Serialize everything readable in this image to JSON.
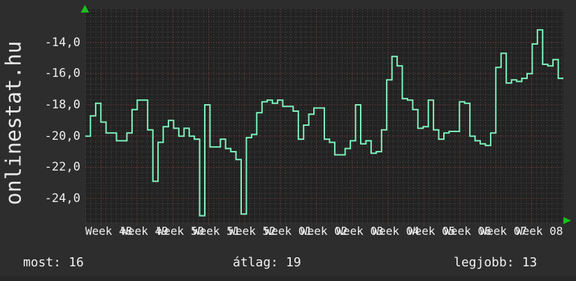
{
  "branding": {
    "site": "onlinestat.hu"
  },
  "footer": {
    "stats": [
      {
        "label": "most:",
        "value": "16"
      },
      {
        "label": "átlag:",
        "value": "19"
      },
      {
        "label": "legjobb:",
        "value": "13"
      }
    ]
  },
  "icons": {
    "axis_arrow_up": "up-triangle",
    "axis_arrow_right": "right-triangle"
  },
  "colors": {
    "background": "#2d2d2d",
    "plot_background": "#222222",
    "grid_minor": "#505050",
    "grid_major": "#993f3f",
    "series": "#7df4bd",
    "axis_marker_green": "#1ac119",
    "text": "#f0f0f0"
  },
  "chart_data": {
    "type": "line",
    "step": true,
    "title": "",
    "xlabel": "",
    "ylabel": "",
    "legend": null,
    "grid": true,
    "ylim": [
      -25.6,
      -11.9
    ],
    "y_ticks": [
      -14,
      -16,
      -18,
      -20,
      -22,
      -24
    ],
    "y_tick_labels": [
      "-14,0",
      "-16,0",
      "-18,0",
      "-20,0",
      "-22,0",
      "-24,0"
    ],
    "x_tick_labels": [
      "Week 48",
      "Week 49",
      "Week 50",
      "Week 51",
      "Week 52",
      "Week 01",
      "Week 02",
      "Week 03",
      "Week 04",
      "Week 05",
      "Week 06",
      "Week 07",
      "Week 08"
    ],
    "x_unit": "day",
    "values": [
      -20.0,
      -18.7,
      -17.9,
      -19.1,
      -19.8,
      -19.8,
      -20.3,
      -20.3,
      -19.8,
      -18.3,
      -17.7,
      -17.7,
      -19.6,
      -22.9,
      -20.4,
      -19.4,
      -19.0,
      -19.5,
      -20.0,
      -19.5,
      -20.0,
      -20.2,
      -25.1,
      -18.0,
      -20.7,
      -20.7,
      -20.2,
      -20.8,
      -21.0,
      -21.5,
      -25.0,
      -20.1,
      -19.9,
      -18.5,
      -17.8,
      -17.7,
      -17.9,
      -17.7,
      -18.1,
      -18.1,
      -18.4,
      -20.2,
      -19.3,
      -18.6,
      -18.2,
      -18.2,
      -20.2,
      -20.4,
      -21.2,
      -21.2,
      -20.8,
      -20.3,
      -18.0,
      -20.5,
      -20.3,
      -21.1,
      -21.0,
      -19.6,
      -16.4,
      -14.9,
      -15.5,
      -17.6,
      -17.7,
      -18.3,
      -19.5,
      -19.4,
      -17.7,
      -19.6,
      -20.2,
      -19.8,
      -19.7,
      -19.7,
      -17.8,
      -17.9,
      -20.0,
      -20.3,
      -20.5,
      -20.6,
      -19.8,
      -15.6,
      -14.7,
      -16.6,
      -16.4,
      -16.5,
      -16.3,
      -16.0,
      -14.1,
      -13.2,
      -15.4,
      -15.5,
      -15.1,
      -16.3
    ],
    "stats": {
      "most": 16,
      "atlag": 19,
      "legjobb": 13
    }
  }
}
